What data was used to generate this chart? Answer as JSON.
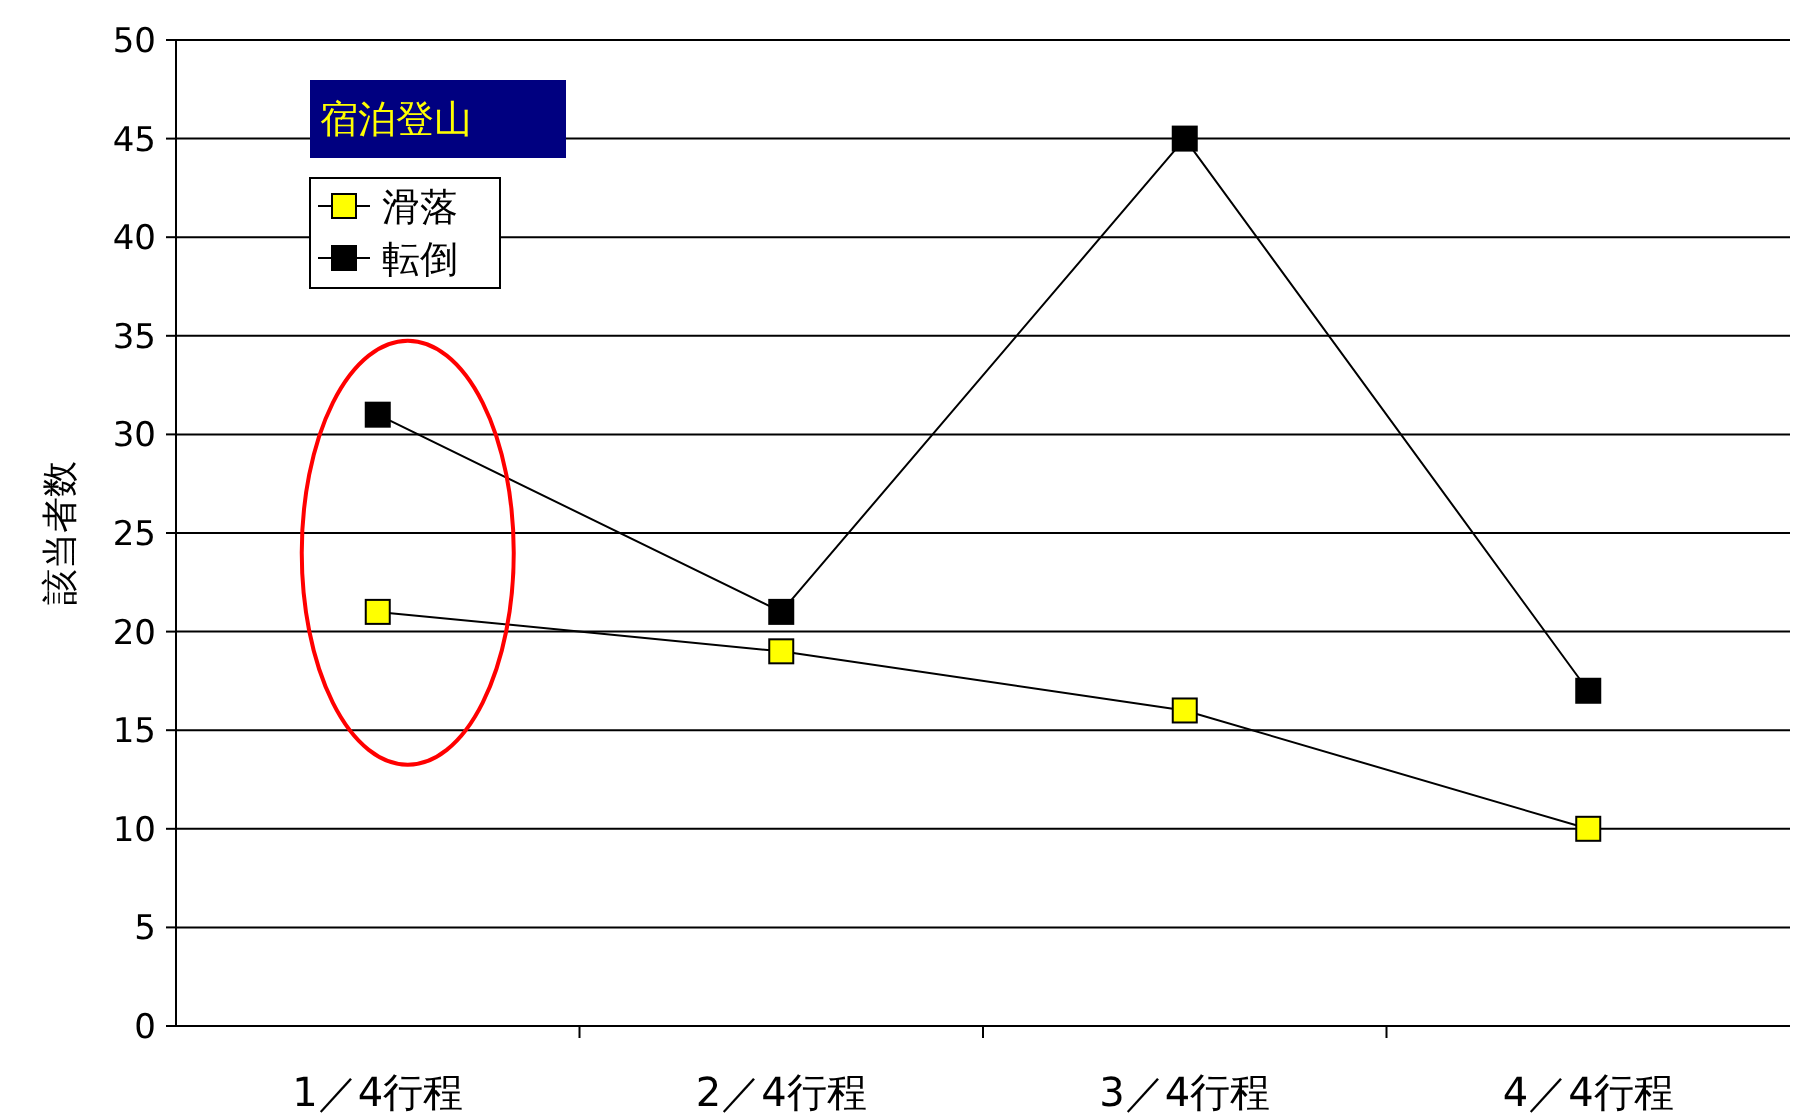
{
  "chart_data": {
    "type": "line",
    "title": "宿泊登山",
    "ylabel": "該当者数",
    "categories": [
      "1／4行程",
      "2／4行程",
      "3／4行程",
      "4／4行程"
    ],
    "series": [
      {
        "name": "滑落",
        "color": "#ffff00",
        "values": [
          21,
          19,
          16,
          10
        ]
      },
      {
        "name": "転倒",
        "color": "#000000",
        "values": [
          31,
          21,
          45,
          17
        ]
      }
    ],
    "ylim": [
      0,
      50
    ],
    "yticks": [
      0,
      5,
      10,
      15,
      20,
      25,
      30,
      35,
      40,
      45,
      50
    ],
    "grid": "y",
    "legend": "top left",
    "marker": "square",
    "line_style": "solid"
  }
}
